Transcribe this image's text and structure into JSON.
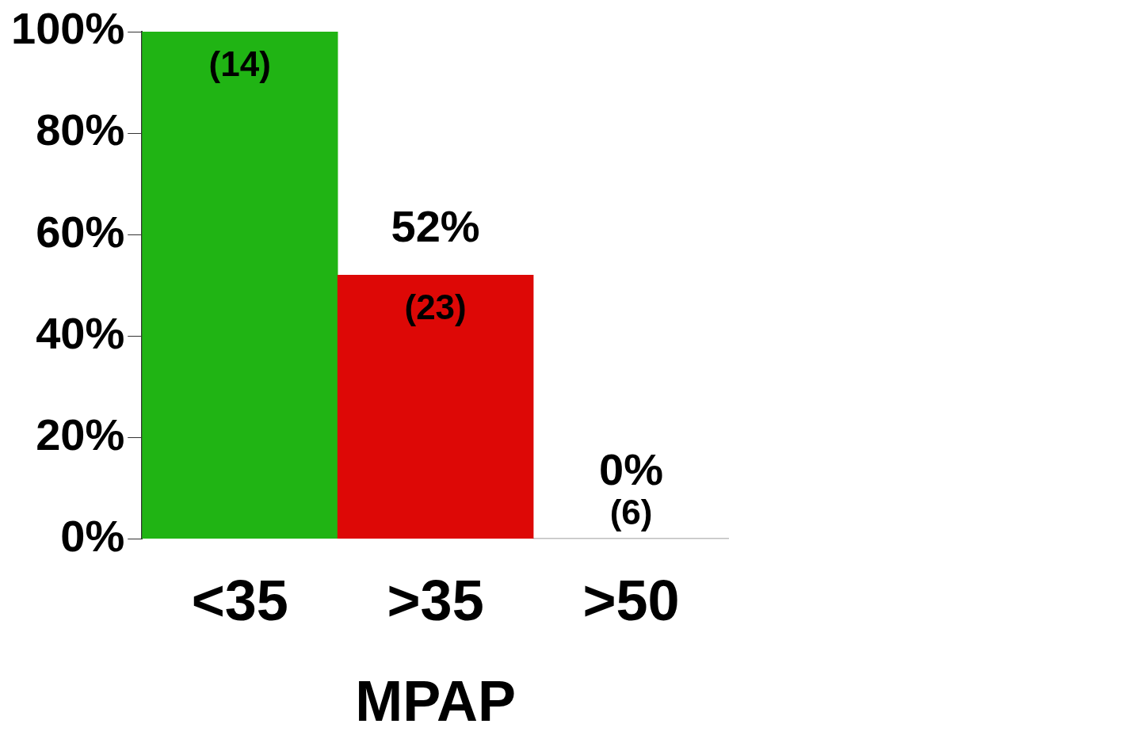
{
  "chart_data": {
    "type": "bar",
    "categories": [
      "<35",
      ">35",
      ">50"
    ],
    "values": [
      100,
      52,
      0
    ],
    "colors": [
      "#20b414",
      "#dd0806",
      "#000000"
    ],
    "xlabel": "MPAP",
    "ylim": [
      0,
      100
    ],
    "yticks": [
      {
        "value": 0,
        "label": "0%"
      },
      {
        "value": 20,
        "label": "20%"
      },
      {
        "value": 40,
        "label": "40%"
      },
      {
        "value": 60,
        "label": "60%"
      },
      {
        "value": 80,
        "label": "80%"
      },
      {
        "value": 100,
        "label": "100%"
      }
    ],
    "value_labels": [
      null,
      "52%",
      "0%"
    ],
    "annotations": [
      {
        "text": "(14)",
        "x": "<35",
        "y": 100
      },
      {
        "text": "(23)",
        "x": ">35",
        "y": 52
      },
      {
        "text": "(6)",
        "x": ">50",
        "y": 0
      }
    ],
    "grid": false,
    "legend": false
  }
}
